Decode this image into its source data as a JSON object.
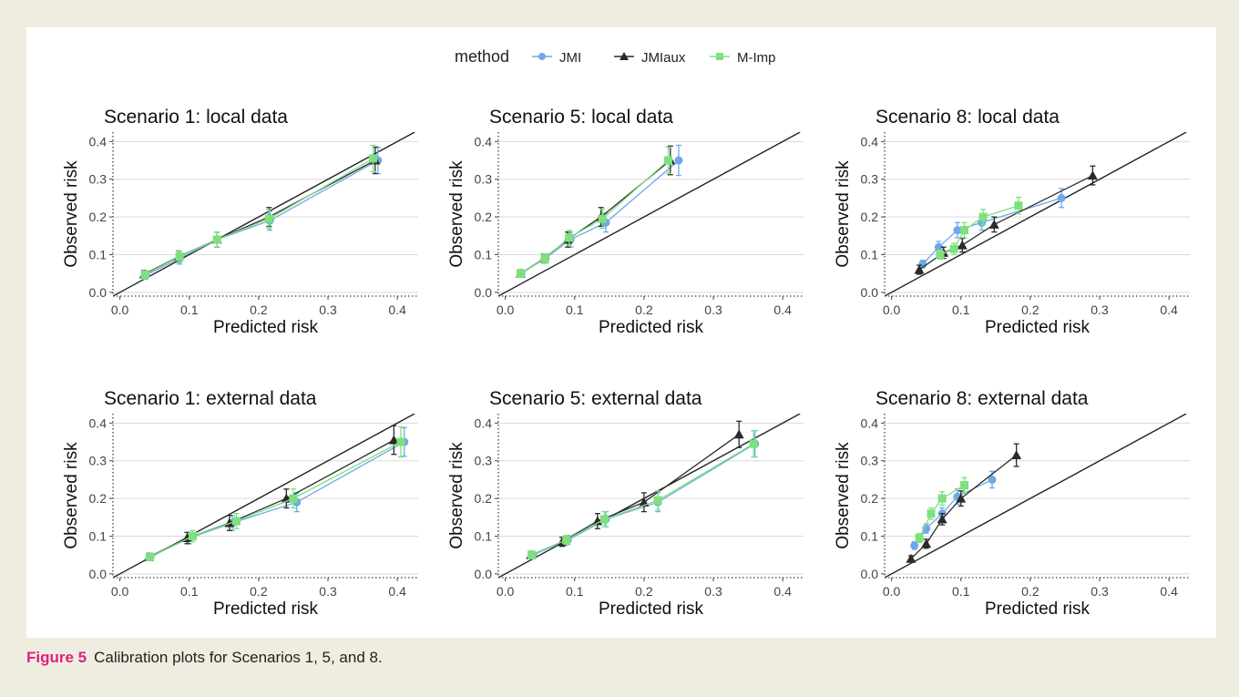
{
  "legend": {
    "title": "method",
    "entries": [
      {
        "name": "JMI",
        "color": "#6fa8e8",
        "shape": "circle"
      },
      {
        "name": "JMIaux",
        "color": "#2b2b2b",
        "shape": "triangle"
      },
      {
        "name": "M-Imp",
        "color": "#7ee07e",
        "shape": "square"
      }
    ]
  },
  "caption": {
    "label": "Figure 5",
    "text": "Calibration plots for Scenarios 1, 5, and 8."
  },
  "chart_data": [
    {
      "type": "line",
      "title": "Scenario 1: local data",
      "xlabel": "Predicted risk",
      "ylabel": "Observed risk",
      "xlim": [
        -0.01,
        0.43
      ],
      "ylim": [
        -0.01,
        0.425
      ],
      "xticks": [
        "0.0",
        "0.1",
        "0.2",
        "0.3",
        "0.4"
      ],
      "yticks": [
        "0.0",
        "0.1",
        "0.2",
        "0.3",
        "0.4"
      ],
      "reference_line": "y = x",
      "series": [
        {
          "name": "JMI",
          "points": [
            [
              0.037,
              0.045,
              0.01
            ],
            [
              0.086,
              0.09,
              0.015
            ],
            [
              0.14,
              0.14,
              0.02
            ],
            [
              0.216,
              0.19,
              0.025
            ],
            [
              0.372,
              0.35,
              0.035
            ]
          ]
        },
        {
          "name": "JMIaux",
          "points": [
            [
              0.035,
              0.048,
              0.01
            ],
            [
              0.085,
              0.095,
              0.015
            ],
            [
              0.14,
              0.14,
              0.02
            ],
            [
              0.215,
              0.2,
              0.025
            ],
            [
              0.368,
              0.35,
              0.035
            ]
          ]
        },
        {
          "name": "M-Imp",
          "points": [
            [
              0.036,
              0.047,
              0.01
            ],
            [
              0.086,
              0.095,
              0.015
            ],
            [
              0.14,
              0.14,
              0.02
            ],
            [
              0.215,
              0.195,
              0.025
            ],
            [
              0.365,
              0.355,
              0.035
            ]
          ]
        }
      ]
    },
    {
      "type": "line",
      "title": "Scenario 5: local data",
      "xlabel": "Predicted risk",
      "ylabel": "Observed risk",
      "xlim": [
        -0.01,
        0.43
      ],
      "ylim": [
        -0.01,
        0.425
      ],
      "xticks": [
        "0.0",
        "0.1",
        "0.2",
        "0.3",
        "0.4"
      ],
      "yticks": [
        "0.0",
        "0.1",
        "0.2",
        "0.3",
        "0.4"
      ],
      "reference_line": "y = x",
      "series": [
        {
          "name": "JMI",
          "points": [
            [
              0.023,
              0.05,
              0.01
            ],
            [
              0.058,
              0.09,
              0.012
            ],
            [
              0.094,
              0.14,
              0.02
            ],
            [
              0.145,
              0.185,
              0.025
            ],
            [
              0.25,
              0.35,
              0.04
            ]
          ]
        },
        {
          "name": "JMIaux",
          "points": [
            [
              0.022,
              0.05,
              0.01
            ],
            [
              0.056,
              0.09,
              0.012
            ],
            [
              0.09,
              0.14,
              0.02
            ],
            [
              0.138,
              0.2,
              0.025
            ],
            [
              0.238,
              0.35,
              0.038
            ]
          ]
        },
        {
          "name": "M-Imp",
          "points": [
            [
              0.022,
              0.05,
              0.01
            ],
            [
              0.057,
              0.09,
              0.012
            ],
            [
              0.092,
              0.145,
              0.02
            ],
            [
              0.14,
              0.195,
              0.025
            ],
            [
              0.235,
              0.35,
              0.035
            ]
          ]
        }
      ]
    },
    {
      "type": "line",
      "title": "Scenario 8: local data",
      "xlabel": "Predicted risk",
      "ylabel": "Observed risk",
      "xlim": [
        -0.01,
        0.43
      ],
      "ylim": [
        -0.01,
        0.425
      ],
      "xticks": [
        "0.0",
        "0.1",
        "0.2",
        "0.3",
        "0.4"
      ],
      "yticks": [
        "0.0",
        "0.1",
        "0.2",
        "0.3",
        "0.4"
      ],
      "reference_line": "y = x",
      "series": [
        {
          "name": "JMI",
          "points": [
            [
              0.045,
              0.075,
              0.01
            ],
            [
              0.068,
              0.12,
              0.015
            ],
            [
              0.095,
              0.165,
              0.02
            ],
            [
              0.13,
              0.185,
              0.02
            ],
            [
              0.245,
              0.25,
              0.025
            ]
          ]
        },
        {
          "name": "JMIaux",
          "points": [
            [
              0.04,
              0.06,
              0.012
            ],
            [
              0.075,
              0.105,
              0.015
            ],
            [
              0.102,
              0.125,
              0.018
            ],
            [
              0.148,
              0.18,
              0.02
            ],
            [
              0.29,
              0.31,
              0.025
            ]
          ]
        },
        {
          "name": "M-Imp",
          "points": [
            [
              0.07,
              0.1,
              0.012
            ],
            [
              0.09,
              0.115,
              0.015
            ],
            [
              0.105,
              0.165,
              0.02
            ],
            [
              0.132,
              0.2,
              0.02
            ],
            [
              0.183,
              0.23,
              0.022
            ]
          ]
        }
      ]
    },
    {
      "type": "line",
      "title": "Scenario 1: external data",
      "xlabel": "Predicted risk",
      "ylabel": "Observed risk",
      "xlim": [
        -0.01,
        0.43
      ],
      "ylim": [
        -0.01,
        0.425
      ],
      "xticks": [
        "0.0",
        "0.1",
        "0.2",
        "0.3",
        "0.4"
      ],
      "yticks": [
        "0.0",
        "0.1",
        "0.2",
        "0.3",
        "0.4"
      ],
      "reference_line": "y = x",
      "series": [
        {
          "name": "JMI",
          "points": [
            [
              0.044,
              0.045,
              0.01
            ],
            [
              0.1,
              0.095,
              0.015
            ],
            [
              0.162,
              0.135,
              0.02
            ],
            [
              0.255,
              0.19,
              0.025
            ],
            [
              0.41,
              0.35,
              0.038
            ]
          ]
        },
        {
          "name": "JMIaux",
          "points": [
            [
              0.042,
              0.045,
              0.01
            ],
            [
              0.097,
              0.095,
              0.015
            ],
            [
              0.158,
              0.135,
              0.02
            ],
            [
              0.24,
              0.2,
              0.025
            ],
            [
              0.395,
              0.355,
              0.038
            ]
          ]
        },
        {
          "name": "M-Imp",
          "points": [
            [
              0.043,
              0.045,
              0.01
            ],
            [
              0.105,
              0.1,
              0.015
            ],
            [
              0.168,
              0.14,
              0.02
            ],
            [
              0.25,
              0.2,
              0.025
            ],
            [
              0.405,
              0.35,
              0.04
            ]
          ]
        }
      ]
    },
    {
      "type": "line",
      "title": "Scenario 5: external data",
      "xlabel": "Predicted risk",
      "ylabel": "Observed risk",
      "xlim": [
        -0.01,
        0.43
      ],
      "ylim": [
        -0.01,
        0.425
      ],
      "xticks": [
        "0.0",
        "0.1",
        "0.2",
        "0.3",
        "0.4"
      ],
      "yticks": [
        "0.0",
        "0.1",
        "0.2",
        "0.3",
        "0.4"
      ],
      "reference_line": "y = x",
      "series": [
        {
          "name": "JMI",
          "points": [
            [
              0.04,
              0.05,
              0.01
            ],
            [
              0.09,
              0.09,
              0.012
            ],
            [
              0.145,
              0.145,
              0.02
            ],
            [
              0.22,
              0.19,
              0.025
            ],
            [
              0.36,
              0.345,
              0.035
            ]
          ]
        },
        {
          "name": "JMIaux",
          "points": [
            [
              0.037,
              0.05,
              0.01
            ],
            [
              0.082,
              0.085,
              0.012
            ],
            [
              0.133,
              0.14,
              0.02
            ],
            [
              0.2,
              0.19,
              0.025
            ],
            [
              0.337,
              0.37,
              0.035
            ]
          ]
        },
        {
          "name": "M-Imp",
          "points": [
            [
              0.038,
              0.05,
              0.01
            ],
            [
              0.088,
              0.09,
              0.012
            ],
            [
              0.143,
              0.145,
              0.02
            ],
            [
              0.22,
              0.195,
              0.025
            ],
            [
              0.358,
              0.345,
              0.035
            ]
          ]
        }
      ]
    },
    {
      "type": "line",
      "title": "Scenario 8: external data",
      "xlabel": "Predicted risk",
      "ylabel": "Observed risk",
      "xlim": [
        -0.01,
        0.43
      ],
      "ylim": [
        -0.01,
        0.425
      ],
      "xticks": [
        "0.0",
        "0.1",
        "0.2",
        "0.3",
        "0.4"
      ],
      "yticks": [
        "0.0",
        "0.1",
        "0.2",
        "0.3",
        "0.4"
      ],
      "reference_line": "y = x",
      "series": [
        {
          "name": "JMI",
          "points": [
            [
              0.033,
              0.075,
              0.01
            ],
            [
              0.05,
              0.12,
              0.012
            ],
            [
              0.073,
              0.16,
              0.015
            ],
            [
              0.095,
              0.205,
              0.02
            ],
            [
              0.145,
              0.25,
              0.022
            ]
          ]
        },
        {
          "name": "JMIaux",
          "points": [
            [
              0.028,
              0.04,
              0.008
            ],
            [
              0.05,
              0.08,
              0.012
            ],
            [
              0.073,
              0.145,
              0.015
            ],
            [
              0.1,
              0.2,
              0.02
            ],
            [
              0.18,
              0.315,
              0.03
            ]
          ]
        },
        {
          "name": "M-Imp",
          "points": [
            [
              0.04,
              0.095,
              0.012
            ],
            [
              0.057,
              0.16,
              0.015
            ],
            [
              0.073,
              0.2,
              0.018
            ],
            [
              0.105,
              0.235,
              0.02
            ],
            [
              0.105,
              0.235,
              0.02
            ]
          ]
        }
      ]
    }
  ]
}
